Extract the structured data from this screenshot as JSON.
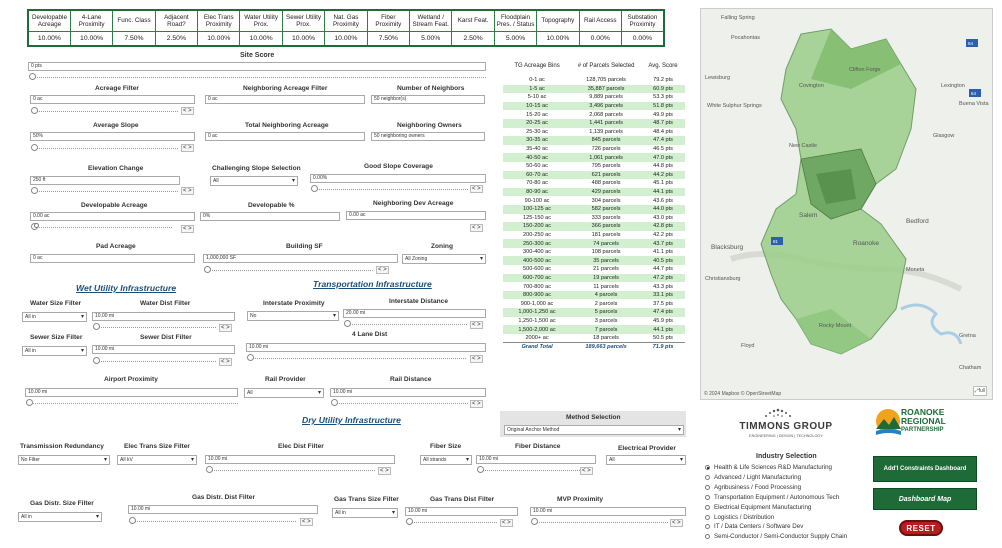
{
  "weights": {
    "headers": [
      "Developable Acreage",
      "4-Lane Proximity",
      "Func. Class",
      "Adjacent Road?",
      "Elec Trans Proximity",
      "Water Utility Prox.",
      "Sewer Utility Prox.",
      "Nat. Gas Proximity",
      "Fiber Proximity",
      "Wetland / Stream Feat.",
      "Karst Feat.",
      "Floodplain Pres. / Status",
      "Topography",
      "Rail Access",
      "Substation Proximity"
    ],
    "values": [
      "10.00%",
      "10.00%",
      "7.50%",
      "2.50%",
      "10.00%",
      "10.00%",
      "10.00%",
      "10.00%",
      "7.50%",
      "5.00%",
      "2.50%",
      "5.00%",
      "10.00%",
      "0.00%",
      "0.00%"
    ]
  },
  "site_score": {
    "label": "Site Score",
    "value": "0 pts"
  },
  "filters": {
    "acreage": {
      "label": "Acreage Filter",
      "value": "0 ac"
    },
    "neighboring_acreage": {
      "label": "Neighboring Acreage Filter",
      "value": "0 ac"
    },
    "number_of_neighbors": {
      "label": "Number of Neighbors",
      "value": "50 neighbor(s)"
    },
    "average_slope": {
      "label": "Average Slope",
      "value": "50%"
    },
    "total_neighboring_acreage": {
      "label": "Total Neighboring Acreage",
      "value": "0 ac"
    },
    "neighboring_owners": {
      "label": "Neighboring Owners",
      "value": "50 neighboring owners"
    },
    "elevation_change": {
      "label": "Elevation Change",
      "value": "250 ft"
    },
    "challenging_slope": {
      "label": "Challenging Slope Selection",
      "value": "All"
    },
    "good_slope": {
      "label": "Good Slope Coverage",
      "value": "0.00%"
    },
    "developable_acreage": {
      "label": "Developable Acreage",
      "value": "0.00 ac"
    },
    "developable_pct": {
      "label": "Developable %",
      "value": "0%"
    },
    "neighboring_dev_acreage": {
      "label": "Neighboring Dev Acreage",
      "value": "0.00 ac"
    },
    "pad_acreage": {
      "label": "Pad Acreage",
      "value": "0 ac"
    },
    "building_sf": {
      "label": "Building SF",
      "value": "1,000,000 SF"
    },
    "zoning": {
      "label": "Zoning",
      "value": "All Zoning"
    }
  },
  "wet": {
    "title": "Wet Utility Infrastructure",
    "water_size": {
      "label": "Water Size Filter",
      "value": "All in"
    },
    "water_dist": {
      "label": "Water Dist Filter",
      "value": "10.00 mi"
    },
    "sewer_size": {
      "label": "Sewer Size Filter",
      "value": "All in"
    },
    "sewer_dist": {
      "label": "Sewer Dist Filter",
      "value": "10.00 mi"
    }
  },
  "transport": {
    "title": "Transportation Infrastructure",
    "interstate_proximity": {
      "label": "Interstate Proximity",
      "value": "No"
    },
    "interstate_distance": {
      "label": "Interstate Distance",
      "value": "20.00 mi"
    },
    "four_lane": {
      "label": "4 Lane Dist",
      "value": "10.00 mi"
    },
    "airport": {
      "label": "Airport Proximity",
      "value": "10.00 mi"
    },
    "rail_provider": {
      "label": "Rail Provider",
      "value": "All"
    },
    "rail_distance": {
      "label": "Rail Distance",
      "value": "10.00 mi"
    }
  },
  "dry": {
    "title": "Dry Utility Infrastructure",
    "transmission": {
      "label": "Transmission Redundancy",
      "value": "No Filter"
    },
    "elec_trans_size": {
      "label": "Elec Trans Size Filter",
      "value": "All kV"
    },
    "elec_dist": {
      "label": "Elec Dist Filter",
      "value": "10.00 mi"
    },
    "fiber_size": {
      "label": "Fiber Size",
      "value": "All strands"
    },
    "fiber_distance": {
      "label": "Fiber Distance",
      "value": "10.00 mi"
    },
    "electrical_provider": {
      "label": "Electrical Provider",
      "value": "All"
    },
    "gas_distr_size": {
      "label": "Gas Distr. Size Filter",
      "value": "All in"
    },
    "gas_distr_dist": {
      "label": "Gas Distr. Dist Filter",
      "value": "10.00 mi"
    },
    "gas_trans_size": {
      "label": "Gas Trans Size Filter",
      "value": "All in"
    },
    "gas_trans_dist": {
      "label": "Gas Trans Dist Filter",
      "value": "10.00 mi"
    },
    "mvp": {
      "label": "MVP Proximity",
      "value": "10.00 mi"
    }
  },
  "acreage_table": {
    "headers": [
      "TG Acreage Bins",
      "# of Parcels Selected",
      "Avg. Score"
    ],
    "rows": [
      [
        "0-1 ac",
        "128,705 parcels",
        "79.2 pts"
      ],
      [
        "1-5 ac",
        "35,887 parcels",
        "60.9 pts"
      ],
      [
        "5-10 ac",
        "9,889 parcels",
        "53.3 pts"
      ],
      [
        "10-15 ac",
        "3,496 parcels",
        "51.8 pts"
      ],
      [
        "15-20 ac",
        "2,068 parcels",
        "49.9 pts"
      ],
      [
        "20-25 ac",
        "1,441 parcels",
        "48.7 pts"
      ],
      [
        "25-30 ac",
        "1,139 parcels",
        "48.4 pts"
      ],
      [
        "30-35 ac",
        "845 parcels",
        "47.4 pts"
      ],
      [
        "35-40 ac",
        "726 parcels",
        "46.5 pts"
      ],
      [
        "40-50 ac",
        "1,061 parcels",
        "47.0 pts"
      ],
      [
        "50-60 ac",
        "795 parcels",
        "44.8 pts"
      ],
      [
        "60-70 ac",
        "621 parcels",
        "44.2 pts"
      ],
      [
        "70-80 ac",
        "488 parcels",
        "45.1 pts"
      ],
      [
        "80-90 ac",
        "429 parcels",
        "44.1 pts"
      ],
      [
        "90-100 ac",
        "304 parcels",
        "43.6 pts"
      ],
      [
        "100-125 ac",
        "582 parcels",
        "44.0 pts"
      ],
      [
        "125-150 ac",
        "333 parcels",
        "43.0 pts"
      ],
      [
        "150-200 ac",
        "366 parcels",
        "42.8 pts"
      ],
      [
        "200-250 ac",
        "181 parcels",
        "42.2 pts"
      ],
      [
        "250-300 ac",
        "74 parcels",
        "43.7 pts"
      ],
      [
        "300-400 ac",
        "108 parcels",
        "41.1 pts"
      ],
      [
        "400-500 ac",
        "35 parcels",
        "40.5 pts"
      ],
      [
        "500-600 ac",
        "21 parcels",
        "44.7 pts"
      ],
      [
        "600-700 ac",
        "19 parcels",
        "47.2 pts"
      ],
      [
        "700-800 ac",
        "11 parcels",
        "43.3 pts"
      ],
      [
        "800-900 ac",
        "4 parcels",
        "33.1 pts"
      ],
      [
        "900-1,000 ac",
        "2 parcels",
        "37.5 pts"
      ],
      [
        "1,000-1,250 ac",
        "5 parcels",
        "47.4 pts"
      ],
      [
        "1,250-1,500 ac",
        "3 parcels",
        "45.9 pts"
      ],
      [
        "1,500-2,000 ac",
        "7 parcels",
        "44.1 pts"
      ],
      [
        "2000+ ac",
        "18 parcels",
        "50.5 pts"
      ]
    ],
    "total": [
      "Grand Total",
      "189,663 parcels",
      "71.9 pts"
    ]
  },
  "method": {
    "label": "Method Selection",
    "value": "Original Anchor Method"
  },
  "map": {
    "places": [
      "Falling Spring",
      "Covington",
      "Clifton Forge",
      "Lexington",
      "Buena Vista",
      "Glasgow",
      "New Castle",
      "Salem",
      "Roanoke",
      "Bedford",
      "Blacksburg",
      "Christiansburg",
      "Moneta",
      "Rocky Mount",
      "Floyd",
      "Gretna",
      "Chatham",
      "Lewisburg",
      "White Sulphur Springs",
      "Pocahontas"
    ],
    "attribution": "© 2024 Mapbox © OpenStreetMap"
  },
  "logos": {
    "timmons": "TIMMONS GROUP",
    "timmons_sub": "ENGINEERING | DESIGN | TECHNOLOGY",
    "roanoke1": "ROANOKE",
    "roanoke2": "REGIONAL",
    "roanoke3": "PARTNERSHIP"
  },
  "industry": {
    "title": "Industry Selection",
    "options": [
      "Health & Life Sciences R&D Manufacturing",
      "Advanced / Light Manufacturing",
      "Agribusiness / Food Processing",
      "Transportation Equipment / Autonomous Tech",
      "Electrical Equipment Manufacturing",
      "Logistics / Distribution",
      "IT / Data Centers / Software Dev",
      "Semi-Conductor / Semi-Conductor Supply Chain"
    ],
    "selected": 0
  },
  "buttons": {
    "constraints": "Add'l Constraints Dashboard",
    "dashboard_map": "Dashboard Map",
    "reset": "RESET"
  },
  "colors": {
    "accent_green": "#1e6b37",
    "table_alt": "#d2f0d0",
    "link_blue": "#1a4f7a"
  }
}
